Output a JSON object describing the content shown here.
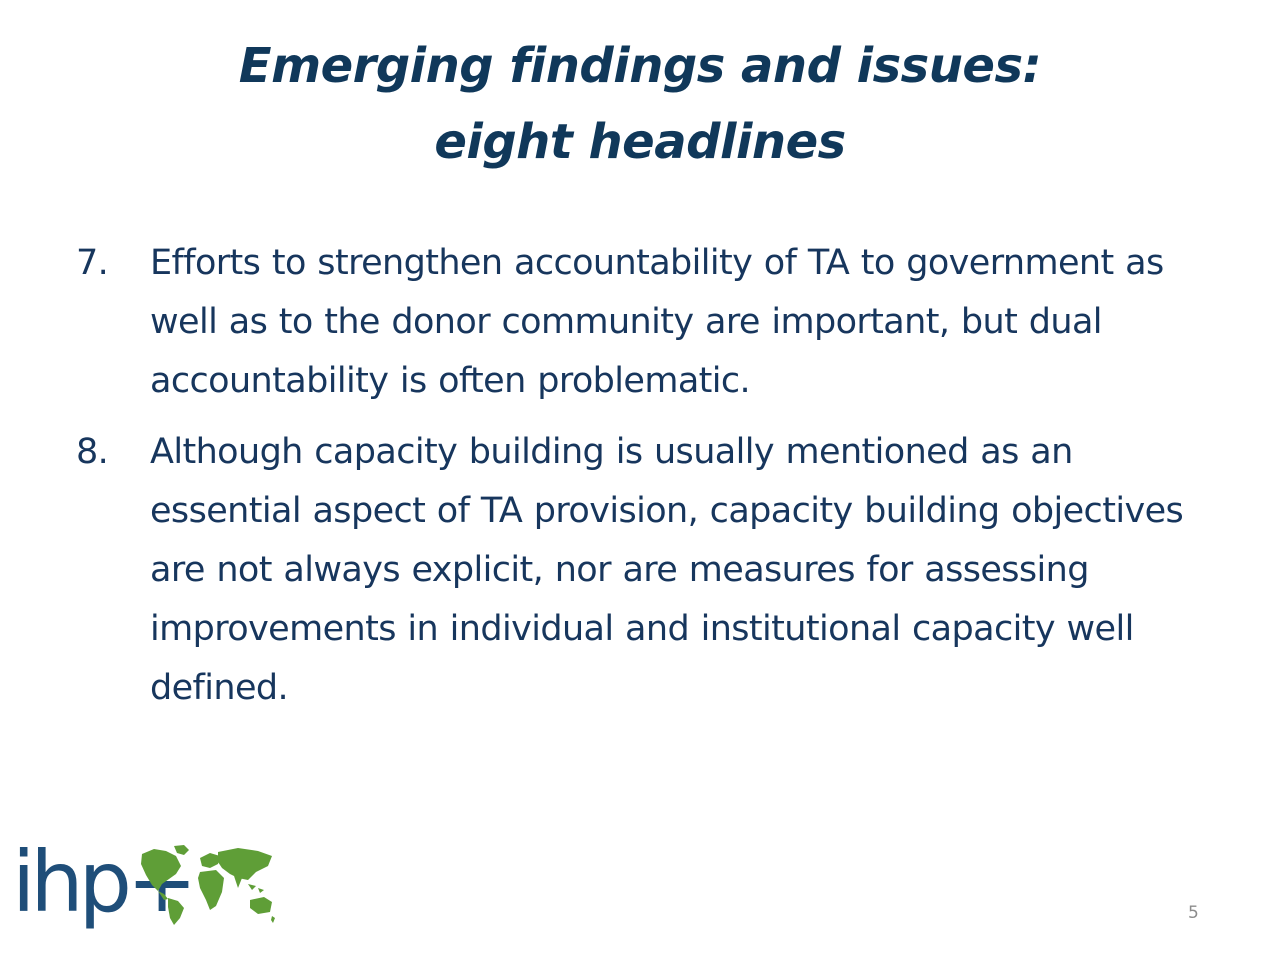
{
  "slide": {
    "title_line1": "Emerging findings and issues:",
    "title_line2": "eight headlines",
    "items": [
      {
        "number": "7.",
        "text": "Efforts to strengthen accountability of TA to government as well as to the donor community are important, but dual accountability is often problematic."
      },
      {
        "number": "8.",
        "text": "Although capacity building is usually mentioned as an essential aspect of TA provision, capacity building objectives are not always explicit, nor are measures for assessing improvements in individual and institutional capacity well defined."
      }
    ],
    "logo_text": "ihp+",
    "page_number": "5"
  },
  "colors": {
    "title": "#10385a",
    "body_text": "#17365d",
    "logo_text": "#1f4e79",
    "logo_map": "#5f9e37",
    "page_number": "#8c8c8c"
  },
  "icons": {
    "logo_map": "world-map-icon"
  }
}
